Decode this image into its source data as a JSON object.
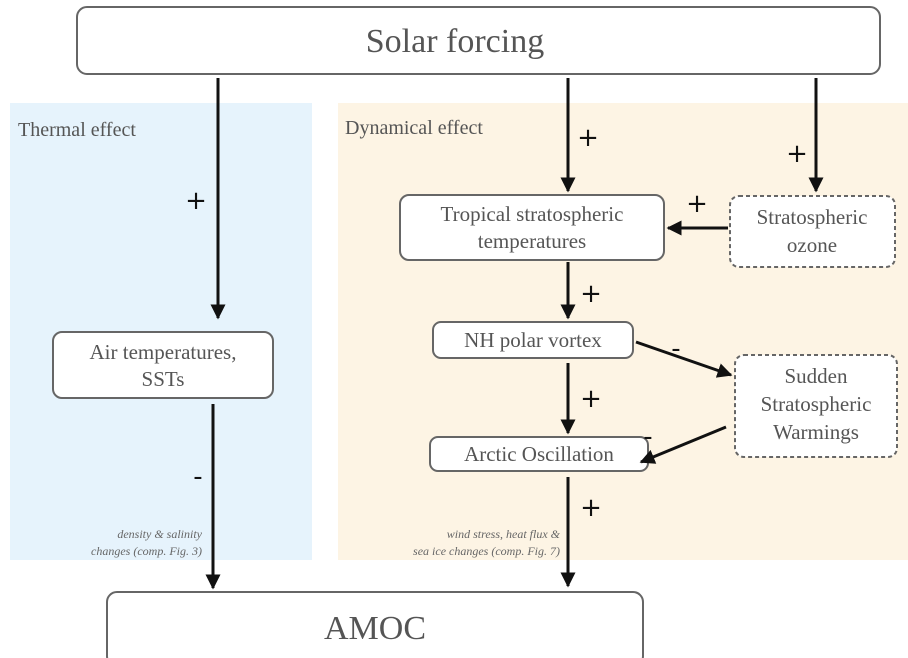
{
  "nodes": [
    {
      "lines": [
        "Solar forcing"
      ]
    },
    {
      "lines": [
        "Air temperatures,",
        "SSTs"
      ]
    },
    {
      "lines": [
        "Tropical stratospheric",
        "temperatures"
      ]
    },
    {
      "lines": [
        "Stratospheric",
        "ozone"
      ]
    },
    {
      "lines": [
        "NH polar vortex"
      ]
    },
    {
      "lines": [
        "Sudden",
        "Stratospheric",
        "Warmings"
      ]
    },
    {
      "lines": [
        "Arctic Oscillation"
      ]
    },
    {
      "lines": [
        "AMOC"
      ]
    }
  ],
  "panels": [
    {
      "label": "Thermal effect"
    },
    {
      "label": "Dynamical effect"
    }
  ],
  "edges": [
    {
      "sign": "+"
    },
    {
      "sign": "+"
    },
    {
      "sign": "+"
    },
    {
      "sign": "+"
    },
    {
      "sign": "+"
    },
    {
      "sign": "-"
    },
    {
      "sign": "+"
    },
    {
      "sign": "-"
    },
    {
      "sign": "-"
    },
    {
      "sign": "+"
    }
  ],
  "annotations": [
    {
      "lines": [
        "density & salinity",
        "changes (comp. Fig. 3)"
      ]
    },
    {
      "lines": [
        "wind stress, heat flux &",
        "sea ice changes (comp. Fig. 7)"
      ]
    }
  ]
}
